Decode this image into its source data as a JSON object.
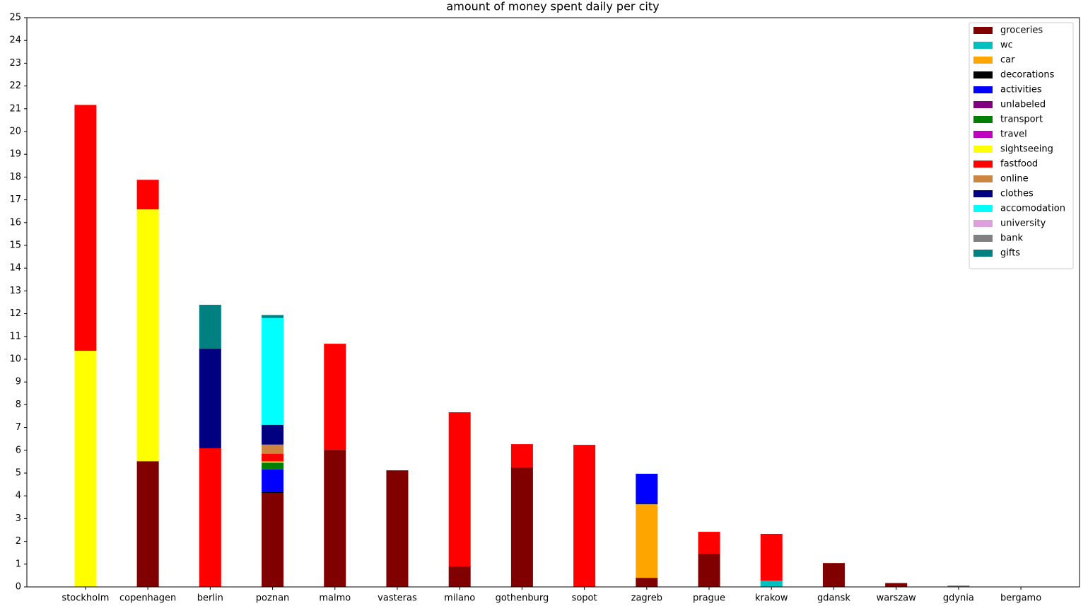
{
  "chart_data": {
    "type": "stacked_bar",
    "title": "amount of money spent daily per city",
    "categories": [
      "stockholm",
      "copenhagen",
      "berlin",
      "poznan",
      "malmo",
      "vasteras",
      "milano",
      "gothenburg",
      "sopot",
      "zagreb",
      "prague",
      "krakow",
      "gdansk",
      "warszaw",
      "gdynia",
      "bergamo"
    ],
    "ylim": [
      0,
      25
    ],
    "yticks": [
      0,
      1,
      2,
      3,
      4,
      5,
      6,
      7,
      8,
      9,
      10,
      11,
      12,
      13,
      14,
      15,
      16,
      17,
      18,
      19,
      20,
      21,
      22,
      23,
      24,
      25
    ],
    "legend": "upper right",
    "series": [
      {
        "name": "groceries",
        "color": "#800000",
        "values": [
          0,
          5.52,
          0,
          4.13,
          6.02,
          5.12,
          0.9,
          5.25,
          0,
          0.4,
          1.46,
          0,
          1.05,
          0.17,
          0,
          0
        ]
      },
      {
        "name": "wc",
        "color": "#00bfbf",
        "values": [
          0,
          0,
          0,
          0,
          0,
          0,
          0,
          0,
          0,
          0,
          0,
          0.28,
          0,
          0,
          0,
          0
        ]
      },
      {
        "name": "car",
        "color": "#ffa500",
        "values": [
          0,
          0,
          0,
          0,
          0,
          0,
          0,
          0,
          0,
          3.23,
          0,
          0,
          0,
          0,
          0,
          0
        ]
      },
      {
        "name": "decorations",
        "color": "#000000",
        "values": [
          0,
          0,
          0,
          0.05,
          0,
          0,
          0,
          0,
          0,
          0.03,
          0,
          0,
          0,
          0,
          0,
          0
        ]
      },
      {
        "name": "activities",
        "color": "#0000ff",
        "values": [
          0,
          0,
          0,
          0.98,
          0,
          0,
          0,
          0,
          0,
          1.31,
          0,
          0,
          0,
          0,
          0,
          0
        ]
      },
      {
        "name": "unlabeled",
        "color": "#800080",
        "values": [
          0,
          0,
          0,
          0,
          0,
          0,
          0,
          0,
          0,
          0,
          0,
          0,
          0,
          0,
          0,
          0
        ]
      },
      {
        "name": "transport",
        "color": "#008000",
        "values": [
          0,
          0,
          0,
          0.3,
          0,
          0,
          0,
          0,
          0,
          0,
          0,
          0,
          0,
          0,
          0,
          0
        ]
      },
      {
        "name": "travel",
        "color": "#bf00bf",
        "values": [
          0,
          0,
          0,
          0,
          0,
          0,
          0,
          0,
          0,
          0,
          0,
          0,
          0,
          0,
          0,
          0
        ]
      },
      {
        "name": "sightseeing",
        "color": "#ffff00",
        "values": [
          10.37,
          11.06,
          0,
          0.05,
          0,
          0,
          0,
          0,
          0,
          0,
          0,
          0,
          0,
          0,
          0,
          0
        ]
      },
      {
        "name": "fastfood",
        "color": "#ff0000",
        "values": [
          10.8,
          1.3,
          6.09,
          0.34,
          4.66,
          0,
          6.77,
          1.02,
          6.24,
          0,
          0.96,
          2.05,
          0,
          0,
          0,
          0
        ]
      },
      {
        "name": "online",
        "color": "#cd853f",
        "values": [
          0,
          0,
          0,
          0.4,
          0,
          0,
          0,
          0,
          0,
          0,
          0,
          0,
          0,
          0,
          0,
          0
        ]
      },
      {
        "name": "clothes",
        "color": "#000080",
        "values": [
          0,
          0,
          4.38,
          0.87,
          0,
          0,
          0,
          0,
          0,
          0,
          0,
          0,
          0,
          0,
          0,
          0
        ]
      },
      {
        "name": "accomodation",
        "color": "#00ffff",
        "values": [
          0,
          0,
          0,
          4.69,
          0,
          0,
          0,
          0,
          0,
          0,
          0,
          0,
          0,
          0,
          0,
          0
        ]
      },
      {
        "name": "university",
        "color": "#dda0dd",
        "values": [
          0,
          0,
          0,
          0,
          0,
          0,
          0,
          0,
          0,
          0,
          0,
          0,
          0,
          0,
          0,
          0
        ]
      },
      {
        "name": "bank",
        "color": "#808080",
        "values": [
          0,
          0,
          0,
          0,
          0,
          0,
          0,
          0,
          0,
          0,
          0,
          0,
          0,
          0,
          0.06,
          0
        ]
      },
      {
        "name": "gifts",
        "color": "#008080",
        "values": [
          0,
          0,
          1.92,
          0.13,
          0,
          0,
          0,
          0,
          0,
          0,
          0,
          0,
          0,
          0,
          0,
          0
        ]
      }
    ]
  }
}
